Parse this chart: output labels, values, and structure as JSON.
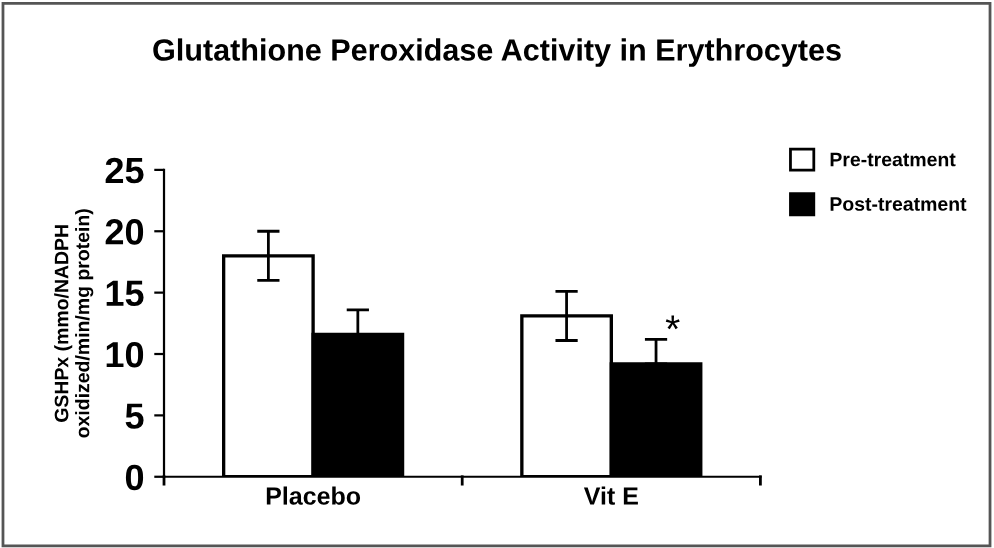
{
  "chart_data": {
    "type": "bar",
    "title": "Glutathione Peroxidase Activity in Erythrocytes",
    "ylabel": "GSHPx (mmo/NADPH\noxidized/min/mg protein)",
    "categories": [
      "Placebo",
      "Vit E"
    ],
    "series": [
      {
        "name": "Pre-treatment",
        "color": "#ffffff",
        "values": [
          18.0,
          13.1
        ],
        "errors": [
          [
            16.0,
            20.0
          ],
          [
            11.1,
            15.1
          ]
        ]
      },
      {
        "name": "Post-treatment",
        "color": "#000000",
        "values": [
          11.6,
          9.2
        ],
        "errors": [
          [
            11.6,
            13.6
          ],
          [
            9.2,
            11.2
          ]
        ]
      }
    ],
    "annotations": [
      {
        "text": "*",
        "x": "Vit E",
        "y": 11.2
      }
    ],
    "ylim": [
      0,
      25
    ],
    "yticks": [
      0,
      5,
      10,
      15,
      20,
      25
    ],
    "grid": false,
    "legend": "top right"
  }
}
